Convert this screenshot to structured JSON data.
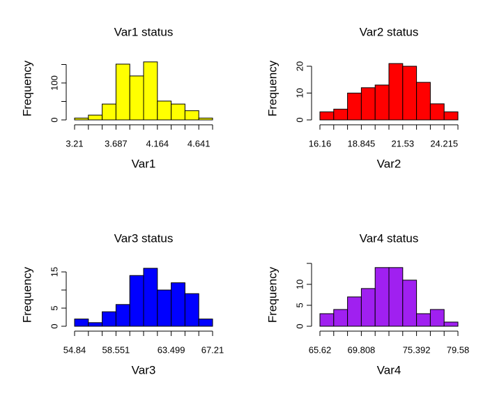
{
  "chart_data": [
    {
      "type": "histogram",
      "title": "Var1 status",
      "xlabel": "Var1",
      "ylabel": "Frequency",
      "color": "#ffff00",
      "bins": [
        3.21,
        3.369,
        3.528,
        3.687,
        3.846,
        4.005,
        4.164,
        4.323,
        4.482,
        4.641,
        4.8
      ],
      "values": [
        5,
        13,
        43,
        151,
        119,
        157,
        51,
        43,
        25,
        5
      ],
      "xlim": [
        3.21,
        4.8
      ],
      "xticks": [
        3.21,
        3.687,
        4.164,
        4.641
      ],
      "ylim": [
        0,
        173.6
      ],
      "yticks": [
        0,
        {
          "value": 50,
          "label": null
        },
        100,
        {
          "value": 150,
          "label": null
        }
      ]
    },
    {
      "type": "histogram",
      "title": "Var2 status",
      "xlabel": "Var2",
      "ylabel": "Frequency",
      "color": "#ff0000",
      "bins": [
        16.16,
        17.055,
        17.95,
        18.845,
        19.74,
        20.635,
        21.53,
        22.425,
        23.32,
        24.215,
        25.11
      ],
      "values": [
        3,
        4,
        10,
        12,
        13,
        21,
        20,
        14,
        6,
        3
      ],
      "xlim": [
        16.16,
        25.11
      ],
      "xticks": [
        16.16,
        18.845,
        21.53,
        24.215
      ],
      "ylim": [
        0,
        23.9
      ],
      "yticks": [
        0,
        10,
        20
      ]
    },
    {
      "type": "histogram",
      "title": "Var3 status",
      "xlabel": "Var3",
      "ylabel": "Frequency",
      "color": "#0000ff",
      "bins": [
        54.84,
        56.077,
        57.314,
        58.551,
        59.788,
        61.025,
        62.262,
        63.499,
        64.736,
        65.973,
        67.21
      ],
      "values": [
        2,
        1,
        4,
        6,
        14,
        16,
        10,
        12,
        9,
        2
      ],
      "xlim": [
        54.84,
        67.21
      ],
      "xticks": [
        54.84,
        58.551,
        63.499,
        67.21
      ],
      "ylim": [
        0,
        17.7
      ],
      "yticks": [
        0,
        5,
        {
          "value": 10,
          "label": null
        },
        15
      ]
    },
    {
      "type": "histogram",
      "title": "Var4 status",
      "xlabel": "Var4",
      "ylabel": "Frequency",
      "color": "#a020f0",
      "bins": [
        65.62,
        67.016,
        68.412,
        69.808,
        71.204,
        72.6,
        73.996,
        75.392,
        76.788,
        78.184,
        79.58
      ],
      "values": [
        3,
        4,
        7,
        9,
        14,
        14,
        11,
        3,
        4,
        1
      ],
      "xlim": [
        65.62,
        79.58
      ],
      "xticks": [
        65.62,
        69.808,
        75.392,
        79.58
      ],
      "ylim": [
        0,
        15.3
      ],
      "yticks": [
        0,
        5,
        10,
        {
          "value": 15,
          "label": null
        }
      ]
    }
  ]
}
